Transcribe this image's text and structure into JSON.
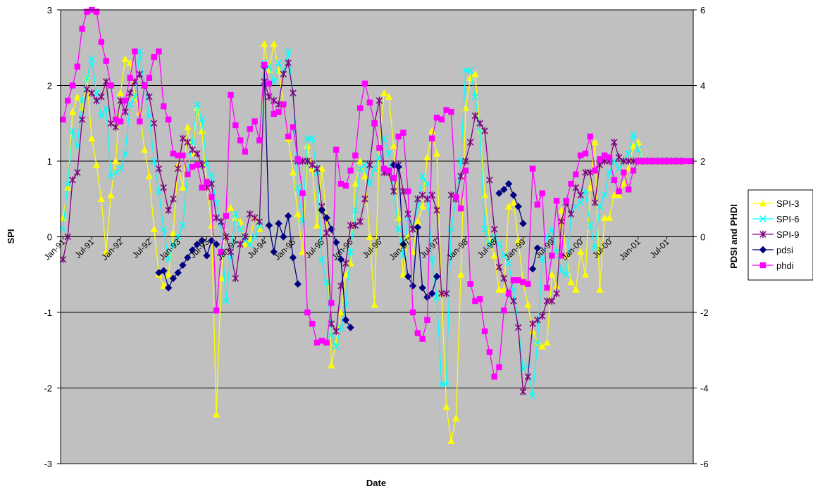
{
  "chart_data": {
    "type": "line",
    "title": "",
    "xlabel": "Date",
    "ylabel": "SPI",
    "y2label": "PDSI and PHDI",
    "ylim": [
      -3,
      3
    ],
    "y2lim": [
      -6,
      6
    ],
    "yticks": [
      "-3",
      "-2",
      "-1",
      "0",
      "1",
      "2",
      "3"
    ],
    "y2ticks": [
      "-6",
      "-4",
      "-2",
      "0",
      "2",
      "4",
      "6"
    ],
    "xticks": [
      "Jan-91",
      "Jul-91",
      "Jan-92",
      "Jul-92",
      "Jan-93",
      "Jul-93",
      "Jan-94",
      "Jul-94",
      "Jan-95",
      "Jul-95",
      "Jan-96",
      "Jul-96",
      "Jan-97",
      "Jul-97",
      "Jan-98",
      "Jul-98",
      "Jan-99",
      "Jul-99",
      "Jan-00",
      "Jul-00",
      "Jan-01",
      "Jul-01"
    ],
    "n_months": 132,
    "grid": true,
    "plot_background": "#c0c0c0",
    "legend_position": "right",
    "series": [
      {
        "name": "SPI-3",
        "axis": "left",
        "color": "#ffff00",
        "marker": "triangle",
        "values": [
          0.25,
          0.65,
          1.65,
          1.85,
          1.7,
          2.1,
          1.3,
          0.95,
          0.5,
          -0.2,
          0.55,
          1.0,
          1.9,
          2.35,
          2.3,
          1.85,
          1.65,
          1.15,
          0.8,
          0.1,
          -0.5,
          -0.65,
          -0.5,
          0.05,
          0.95,
          0.65,
          1.45,
          1.1,
          1.7,
          1.4,
          0.65,
          0.15,
          -2.35,
          -0.55,
          0.3,
          0.38,
          0.25,
          0.2,
          -0.1,
          -0.05,
          0.25,
          0.1,
          2.55,
          2.2,
          2.55,
          2.2,
          1.75,
          1.3,
          0.85,
          0.3,
          -0.2,
          1.2,
          0.9,
          0.15,
          0.9,
          0.25,
          -1.7,
          -1.4,
          -1.0,
          -0.5,
          -0.35,
          0.7,
          1.0,
          0.8,
          0.0,
          -0.9,
          1.2,
          1.9,
          1.85,
          1.2,
          0.25,
          -0.5,
          0.0,
          -0.2,
          0.2,
          0.4,
          1.05,
          1.4,
          1.1,
          -0.75,
          -2.25,
          -2.7,
          -2.4,
          -0.5,
          1.7,
          2.1,
          2.15,
          1.4,
          0.55,
          -0.05,
          -0.25,
          -0.7,
          -0.7,
          0.4,
          0.45,
          -0.05,
          -0.6,
          -0.9,
          -1.25,
          -1.4,
          -1.45,
          -1.4,
          -0.5,
          -0.65,
          0.35,
          -0.25,
          -0.6,
          -0.7,
          -0.2,
          -0.5,
          0.65,
          1.25,
          -0.7,
          0.25,
          0.25,
          0.55,
          0.55,
          0.7,
          0.9,
          1.2,
          1.25,
          1.0,
          1.0,
          1.0,
          1.0,
          1.0,
          1.0,
          1.0,
          1.0,
          1.0,
          1.0,
          1.0
        ]
      },
      {
        "name": "SPI-6",
        "axis": "left",
        "color": "#00ffff",
        "marker": "x",
        "values": [
          0.1,
          0.7,
          1.4,
          1.2,
          1.8,
          2.1,
          2.35,
          1.9,
          1.6,
          1.7,
          0.8,
          0.85,
          0.9,
          1.1,
          1.75,
          1.85,
          2.45,
          2.0,
          1.6,
          1.0,
          0.6,
          0.1,
          -0.3,
          -0.1,
          0.0,
          0.15,
          0.85,
          1.25,
          1.75,
          1.55,
          0.95,
          0.8,
          0.45,
          0.15,
          -0.85,
          -0.25,
          0.3,
          0.1,
          -0.05,
          -0.1,
          0.0,
          0.15,
          2.3,
          2.25,
          2.05,
          2.3,
          2.15,
          2.45,
          1.9,
          0.65,
          0.2,
          1.3,
          1.3,
          0.85,
          -0.3,
          -0.6,
          -1.3,
          -1.45,
          -1.2,
          -0.9,
          -0.2,
          0.35,
          0.9,
          0.95,
          0.7,
          0.9,
          1.05,
          1.3,
          1.1,
          0.6,
          0.1,
          -0.25,
          0.25,
          0.1,
          0.4,
          0.8,
          0.7,
          -0.3,
          -0.8,
          -1.95,
          -1.95,
          0.1,
          0.5,
          1.0,
          2.2,
          2.2,
          1.85,
          1.4,
          0.1,
          -0.1,
          0.0,
          -0.1,
          -0.25,
          -0.35,
          -0.7,
          -1.2,
          -1.75,
          -1.7,
          -2.1,
          -1.4,
          -0.3,
          0.0,
          0.1,
          -0.2,
          -0.45,
          -0.5,
          0.3,
          0.4,
          0.45,
          0.6,
          0.15,
          -0.15,
          0.4,
          0.55,
          0.85,
          1.0,
          0.9,
          1.0,
          1.1,
          1.35,
          1.15,
          1.0,
          1.0,
          1.0,
          1.0,
          1.0,
          1.0,
          1.0,
          1.0,
          1.0,
          1.0,
          1.0
        ]
      },
      {
        "name": "SPI-9",
        "axis": "left",
        "color": "#800080",
        "marker": "star",
        "values": [
          -0.3,
          0.0,
          0.75,
          0.85,
          1.55,
          1.95,
          1.9,
          1.8,
          1.85,
          2.05,
          1.5,
          1.45,
          1.8,
          1.65,
          1.9,
          2.05,
          2.15,
          2.0,
          1.85,
          1.5,
          0.9,
          0.65,
          0.35,
          0.5,
          0.9,
          1.3,
          1.25,
          1.15,
          1.1,
          0.95,
          0.65,
          0.7,
          0.25,
          0.2,
          0.0,
          -0.2,
          -0.55,
          -0.1,
          0.0,
          0.3,
          0.25,
          0.2,
          2.05,
          1.85,
          1.8,
          1.75,
          2.15,
          2.3,
          1.9,
          1.0,
          1.0,
          1.0,
          0.95,
          0.9,
          0.4,
          0.05,
          -1.15,
          -1.25,
          -0.65,
          -0.35,
          0.15,
          0.15,
          0.2,
          0.5,
          0.95,
          1.5,
          1.8,
          0.85,
          0.85,
          0.6,
          0.95,
          0.6,
          0.3,
          0.1,
          0.5,
          0.55,
          0.5,
          0.55,
          0.35,
          -0.75,
          -0.75,
          0.55,
          0.5,
          0.8,
          1.0,
          1.25,
          1.6,
          1.5,
          1.4,
          0.75,
          0.1,
          -0.4,
          -0.55,
          -0.75,
          -0.85,
          -1.2,
          -2.05,
          -1.85,
          -1.15,
          -1.1,
          -1.05,
          -0.85,
          -0.85,
          -0.75,
          0.2,
          0.45,
          0.3,
          0.65,
          0.55,
          0.85,
          0.85,
          0.45,
          0.95,
          1.0,
          1.0,
          1.25,
          1.05,
          1.0,
          1.0,
          1.0,
          1.0,
          1.0,
          1.0,
          1.0,
          1.0,
          1.0,
          1.0,
          1.0,
          1.0,
          1.0
        ]
      },
      {
        "name": "pdsi",
        "axis": "right",
        "color": "#000080",
        "marker": "diamond",
        "values": [
          null,
          null,
          null,
          null,
          null,
          null,
          null,
          null,
          null,
          null,
          null,
          null,
          null,
          null,
          null,
          null,
          null,
          null,
          null,
          null,
          -0.95,
          -0.9,
          -1.35,
          -1.1,
          -0.95,
          -0.75,
          -0.55,
          -0.35,
          -0.2,
          -0.1,
          -0.5,
          -0.1,
          -0.2,
          null,
          null,
          null,
          null,
          null,
          null,
          null,
          null,
          null,
          4.5,
          0.3,
          -0.4,
          0.35,
          0.0,
          0.55,
          -0.55,
          -1.25,
          null,
          null,
          null,
          null,
          0.7,
          0.5,
          0.2,
          -0.15,
          -0.6,
          -2.2,
          -2.4,
          null,
          null,
          null,
          null,
          null,
          null,
          null,
          null,
          1.9,
          1.85,
          -0.2,
          -1.05,
          -1.3,
          0.25,
          -1.35,
          -1.6,
          -1.5,
          -1.05,
          null,
          null,
          null,
          null,
          null,
          null,
          null,
          null,
          null,
          null,
          null,
          null,
          1.15,
          1.25,
          1.4,
          1.1,
          0.8,
          0.35,
          null,
          -0.85,
          -0.3,
          null,
          null,
          null,
          null,
          null,
          null,
          null,
          null,
          null,
          null,
          null,
          null,
          null,
          null,
          null,
          null,
          null,
          null,
          null,
          null,
          null,
          null,
          null,
          null,
          null,
          null,
          null,
          null,
          null,
          null,
          null
        ]
      },
      {
        "name": "phdi",
        "axis": "right",
        "color": "#ff00ff",
        "marker": "square",
        "values": [
          3.1,
          3.6,
          4.0,
          4.5,
          5.5,
          5.95,
          6.0,
          5.95,
          5.15,
          4.65,
          4.0,
          3.1,
          3.05,
          3.6,
          4.2,
          4.9,
          3.05,
          4.0,
          4.2,
          4.75,
          4.9,
          3.45,
          3.1,
          2.2,
          2.15,
          2.15,
          1.65,
          1.85,
          1.9,
          1.3,
          1.45,
          1.05,
          -1.95,
          -0.4,
          0.55,
          3.75,
          2.95,
          2.55,
          2.25,
          2.85,
          3.05,
          2.55,
          4.55,
          4.05,
          3.25,
          3.3,
          3.5,
          2.65,
          2.9,
          2.05,
          1.15,
          -2.0,
          -2.3,
          -2.8,
          -2.75,
          -2.8,
          -1.75,
          2.3,
          1.4,
          1.35,
          1.75,
          2.15,
          3.4,
          4.05,
          3.55,
          3.0,
          2.35,
          1.8,
          1.75,
          1.55,
          2.65,
          2.75,
          1.2,
          -2.0,
          -2.55,
          -2.7,
          -2.2,
          2.6,
          3.15,
          3.1,
          3.35,
          3.3,
          1.05,
          0.75,
          1.75,
          -1.25,
          -1.7,
          -1.65,
          -2.5,
          -3.05,
          -3.7,
          -3.45,
          -1.95,
          -1.5,
          -1.15,
          -1.15,
          -1.2,
          -1.25,
          1.8,
          0.85,
          1.15,
          -1.35,
          -0.5,
          0.95,
          -0.5,
          0.95,
          1.4,
          1.65,
          2.15,
          2.2,
          2.65,
          1.75,
          2.05,
          2.15,
          2.1,
          1.5,
          1.2,
          1.7,
          1.25,
          1.75,
          2.0,
          2.0,
          2.0,
          2.0,
          2.0,
          2.0,
          2.0,
          2.0,
          2.0,
          2.0,
          2.0,
          2.0
        ]
      }
    ]
  }
}
